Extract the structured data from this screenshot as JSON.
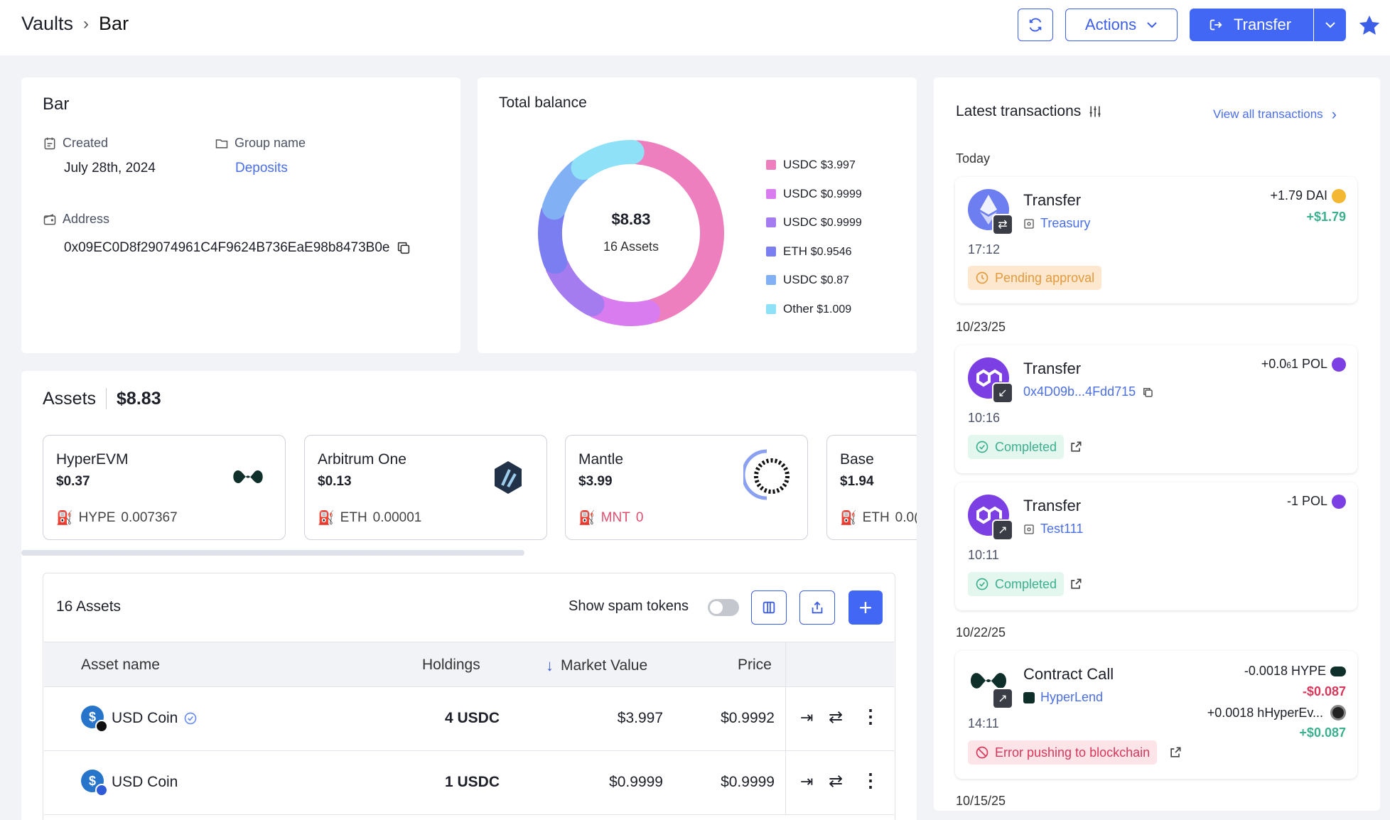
{
  "breadcrumb": {
    "root": "Vaults",
    "current": "Bar"
  },
  "header": {
    "actions_label": "Actions",
    "transfer_label": "Transfer"
  },
  "vault": {
    "name": "Bar",
    "created_label": "Created",
    "created_value": "July 28th, 2024",
    "group_label": "Group name",
    "group_value": "Deposits",
    "address_label": "Address",
    "address_value": "0x09EC0D8f29074961C4F9624B736EaE98b8473B0e"
  },
  "balance": {
    "title": "Total balance",
    "total": "$8.83",
    "assets_count": "16 Assets",
    "legend": [
      {
        "label": "USDC",
        "value": "$3.997",
        "color": "#ee7fbe"
      },
      {
        "label": "USDC",
        "value": "$0.9999",
        "color": "#d97cf0"
      },
      {
        "label": "USDC",
        "value": "$0.9999",
        "color": "#a57cf0"
      },
      {
        "label": "ETH",
        "value": "$0.9546",
        "color": "#7a7ef0"
      },
      {
        "label": "USDC",
        "value": "$0.87",
        "color": "#82b0f5"
      },
      {
        "label": "Other",
        "value": "$1.009",
        "color": "#8ee1f7"
      }
    ]
  },
  "chart_data": {
    "type": "pie",
    "categories": [
      "USDC",
      "USDC",
      "USDC",
      "ETH",
      "USDC",
      "Other"
    ],
    "values": [
      3.997,
      0.9999,
      0.9999,
      0.9546,
      0.87,
      1.009
    ]
  },
  "assets": {
    "title": "Assets",
    "total": "$8.83",
    "networks": [
      {
        "name": "HyperEVM",
        "value": "$0.37",
        "token": "HYPE",
        "amount": "0.007367"
      },
      {
        "name": "Arbitrum One",
        "value": "$0.13",
        "token": "ETH",
        "amount": "0.00001"
      },
      {
        "name": "Mantle",
        "value": "$3.99",
        "token": "MNT",
        "amount": "0"
      },
      {
        "name": "Base",
        "value": "$1.94",
        "token": "ETH",
        "amount": "0.0("
      }
    ],
    "table_title": "16 Assets",
    "spam_label": "Show spam tokens",
    "columns": [
      "Asset name",
      "Holdings",
      "Market Value",
      "Price"
    ],
    "rows": [
      {
        "name": "USD Coin",
        "holdings": "4 USDC",
        "market": "$3.997",
        "price": "$0.9992"
      },
      {
        "name": "USD Coin",
        "holdings": "1 USDC",
        "market": "$0.9999",
        "price": "$0.9999"
      }
    ]
  },
  "transactions": {
    "title": "Latest transactions",
    "view_all": "View all transactions",
    "groups": [
      {
        "date": "Today"
      },
      {
        "date": "10/23/25"
      },
      {
        "date": "10/22/25"
      },
      {
        "date": "10/15/25"
      }
    ],
    "items": [
      {
        "type": "Transfer",
        "sub": "Treasury",
        "time": "17:12",
        "amount": "+1.79 DAI",
        "usd": "+$1.79",
        "status": "Pending approval"
      },
      {
        "type": "Transfer",
        "sub": "0x4D09b...4Fdd715",
        "time": "10:16",
        "amount": "+0.0",
        "amount_sub": "6",
        "amount_tail": "1 POL",
        "status": "Completed"
      },
      {
        "type": "Transfer",
        "sub": "Test111",
        "time": "10:11",
        "amount": "-1 POL",
        "status": "Completed"
      },
      {
        "type": "Contract Call",
        "sub": "HyperLend",
        "time": "14:11",
        "amount": "-0.0018 HYPE",
        "usd": "-$0.087",
        "amount2": "+0.0018 hHyperEv...",
        "usd2": "+$0.087",
        "status": "Error pushing to blockchain"
      }
    ]
  }
}
